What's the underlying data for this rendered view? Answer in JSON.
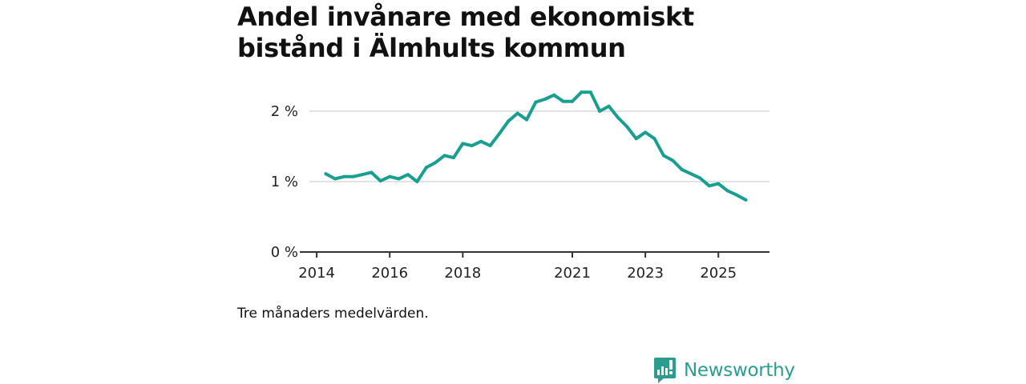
{
  "chart_data": {
    "type": "line",
    "title": "Andel invånare med ekonomiskt bistånd i Älmhults kommun",
    "subtitle": "",
    "xlabel": "",
    "ylabel": "",
    "x_ticks": [
      {
        "value": 2014.0,
        "label": "2014"
      },
      {
        "value": 2016.0,
        "label": "2016"
      },
      {
        "value": 2018.0,
        "label": "2018"
      },
      {
        "value": 2021.0,
        "label": "2021"
      },
      {
        "value": 2023.0,
        "label": "2023"
      },
      {
        "value": 2025.0,
        "label": "2025"
      }
    ],
    "y_ticks": [
      {
        "value": 0,
        "label": "0 %"
      },
      {
        "value": 1,
        "label": "1 %"
      },
      {
        "value": 2,
        "label": "2 %"
      }
    ],
    "xlim": [
      2013.8,
      2026.4
    ],
    "ylim": [
      0,
      2.5
    ],
    "grid": true,
    "series": [
      {
        "name": "Andel invånare med ekonomiskt bistånd",
        "color": "#1a9e8f",
        "x": [
          2014.25,
          2014.5,
          2014.75,
          2015.0,
          2015.25,
          2015.5,
          2015.75,
          2016.0,
          2016.25,
          2016.5,
          2016.75,
          2017.0,
          2017.25,
          2017.5,
          2017.75,
          2018.0,
          2018.25,
          2018.5,
          2018.75,
          2019.0,
          2019.25,
          2019.5,
          2019.75,
          2020.0,
          2020.25,
          2020.5,
          2020.75,
          2021.0,
          2021.25,
          2021.5,
          2021.75,
          2022.0,
          2022.25,
          2022.5,
          2022.75,
          2023.0,
          2023.25,
          2023.5,
          2023.75,
          2024.0,
          2024.25,
          2024.5,
          2024.75,
          2025.0,
          2025.25,
          2025.5,
          2025.75
        ],
        "values": [
          1.11,
          1.04,
          1.07,
          1.07,
          1.1,
          1.13,
          1.01,
          1.07,
          1.04,
          1.1,
          1.0,
          1.2,
          1.27,
          1.37,
          1.34,
          1.54,
          1.51,
          1.57,
          1.51,
          1.68,
          1.86,
          1.97,
          1.88,
          2.13,
          2.17,
          2.23,
          2.14,
          2.14,
          2.27,
          2.27,
          2.0,
          2.07,
          1.91,
          1.78,
          1.61,
          1.7,
          1.61,
          1.37,
          1.3,
          1.17,
          1.11,
          1.05,
          0.94,
          0.97,
          0.87,
          0.81,
          0.74
        ]
      }
    ],
    "caption": "Tre månaders medelvärden.",
    "brand": "Newsworthy"
  }
}
